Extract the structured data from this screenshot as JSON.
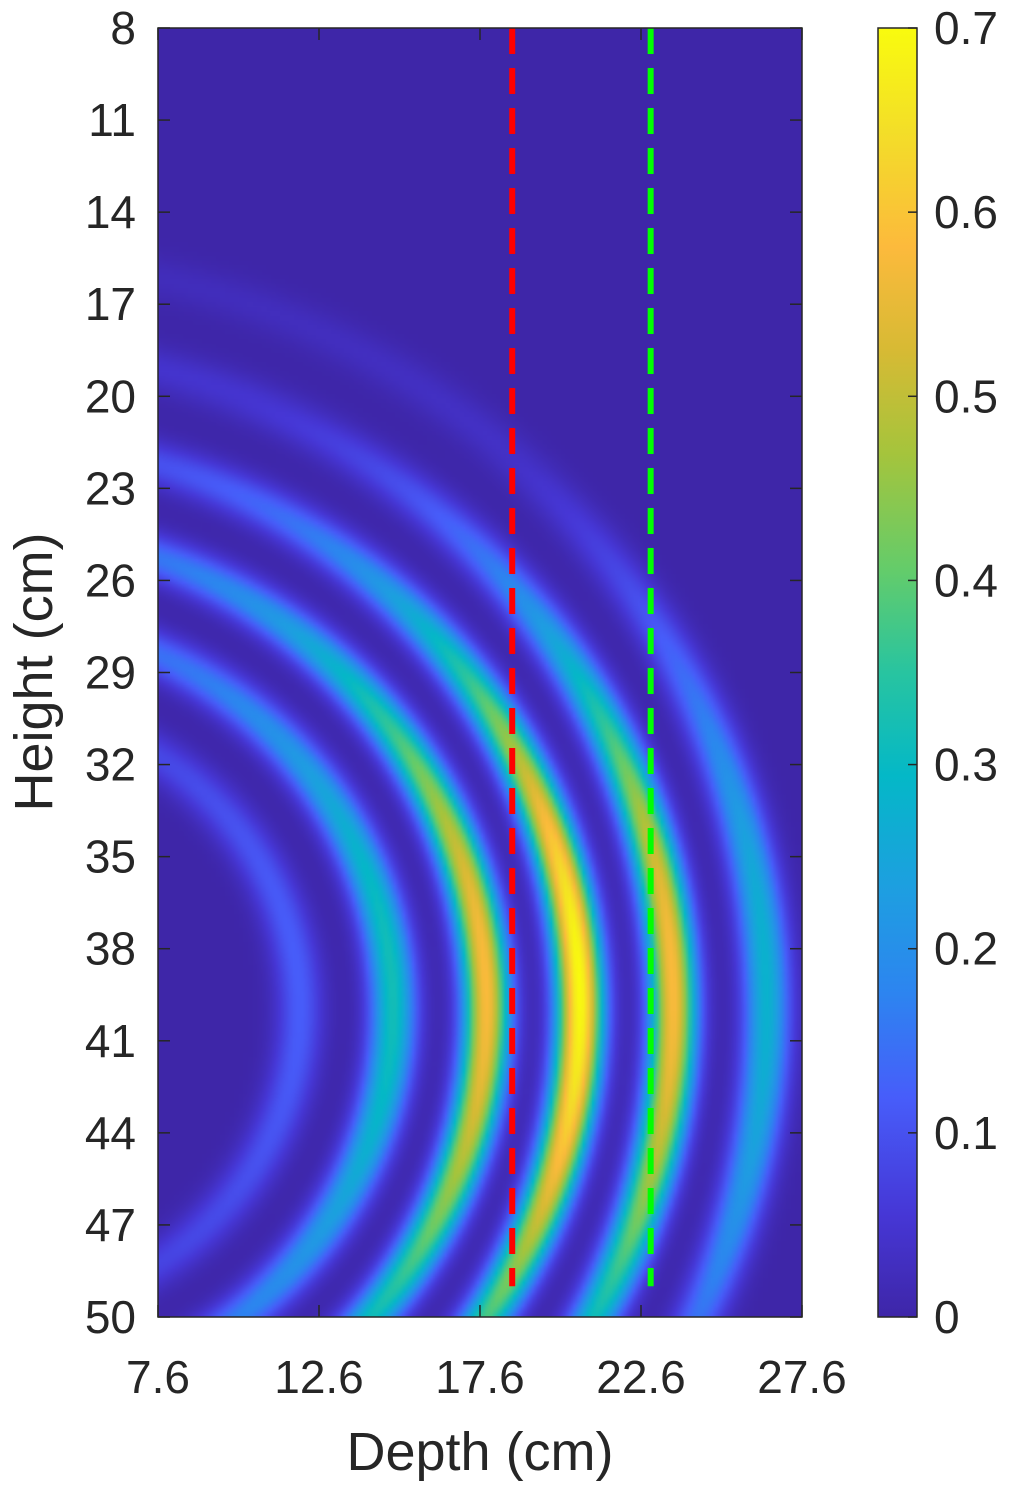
{
  "chart_data": {
    "type": "heatmap",
    "title": "",
    "xlabel": "Depth (cm)",
    "ylabel": "Height (cm)",
    "xlim": [
      7.6,
      27.6
    ],
    "ylim": [
      8,
      50
    ],
    "y_reversed": true,
    "xticks": [
      7.6,
      12.6,
      17.6,
      22.6,
      27.6
    ],
    "xtick_labels": [
      "7.6",
      "12.6",
      "17.6",
      "22.6",
      "27.6"
    ],
    "yticks": [
      8,
      11,
      14,
      17,
      20,
      23,
      26,
      29,
      32,
      35,
      38,
      41,
      44,
      47,
      50
    ],
    "ytick_labels": [
      "8",
      "11",
      "14",
      "17",
      "20",
      "23",
      "26",
      "29",
      "32",
      "35",
      "38",
      "41",
      "44",
      "47",
      "50"
    ],
    "colorbar": {
      "range": [
        0,
        0.7
      ],
      "ticks": [
        0,
        0.1,
        0.2,
        0.3,
        0.4,
        0.5,
        0.6,
        0.7
      ],
      "tick_labels": [
        "0",
        "0.1",
        "0.2",
        "0.3",
        "0.4",
        "0.5",
        "0.6",
        "0.7"
      ],
      "colormap": "parula"
    },
    "reference_lines": [
      {
        "orientation": "vertical",
        "x": 18.6,
        "y_range": [
          8,
          49
        ],
        "style": "dashed",
        "color": "#ff0000"
      },
      {
        "orientation": "vertical",
        "x": 22.9,
        "y_range": [
          8,
          49
        ],
        "style": "dashed",
        "color": "#00ff00"
      }
    ],
    "field": {
      "description_of_shape": "concentric arcs bulging toward larger depth",
      "source_center": [
        2.0,
        40.0
      ],
      "arc_radius_peaks": [
        10.0,
        12.9,
        15.8,
        18.7,
        21.6,
        24.5
      ],
      "arc_amplitudes": [
        0.12,
        0.32,
        0.58,
        0.7,
        0.58,
        0.28
      ],
      "focus_height": 39.0,
      "max_value": 0.7
    }
  }
}
